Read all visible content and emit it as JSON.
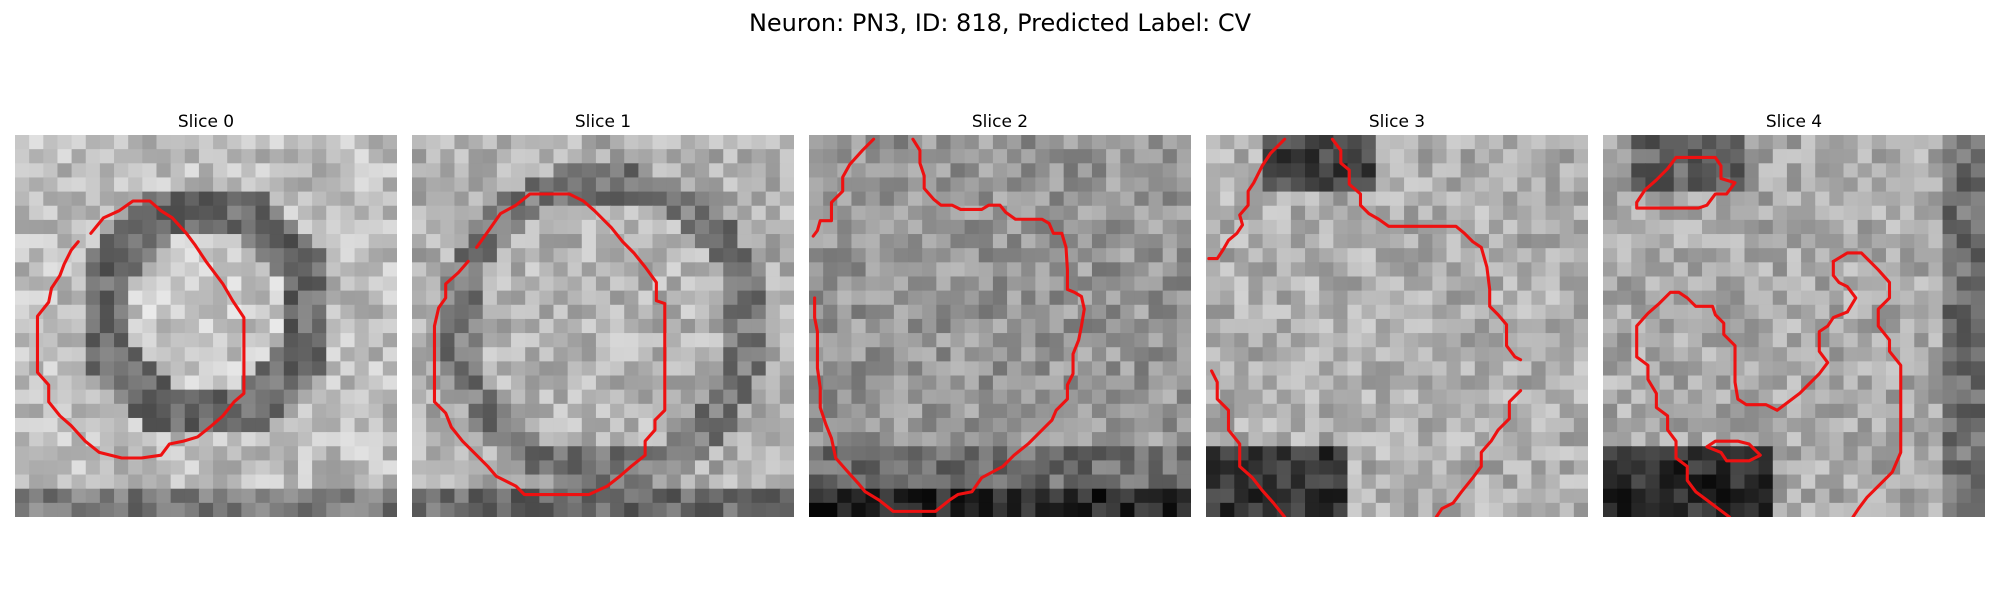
{
  "figure": {
    "title": "Neuron: PN3, ID: 818, Predicted Label: CV"
  },
  "colors": {
    "contour": "#ee1111",
    "background": "#ffffff"
  },
  "panels": [
    {
      "title": "Slice 0",
      "contours": [
        [
          [
            5.4,
            7.0
          ],
          [
            6.3,
            5.9
          ],
          [
            7.4,
            5.4
          ],
          [
            8.4,
            4.7
          ],
          [
            9.6,
            4.7
          ],
          [
            10.4,
            5.4
          ],
          [
            11.2,
            5.9
          ],
          [
            12.2,
            7.0
          ],
          [
            12.8,
            7.8
          ],
          [
            13.6,
            9.0
          ],
          [
            14.8,
            10.6
          ],
          [
            15.5,
            11.8
          ],
          [
            16.3,
            13.0
          ],
          [
            16.3,
            14.7
          ],
          [
            16.3,
            16.7
          ],
          [
            16.3,
            18.4
          ],
          [
            15.6,
            19.0
          ],
          [
            14.8,
            20.0
          ],
          [
            14.0,
            20.7
          ],
          [
            13.0,
            21.5
          ],
          [
            12.0,
            21.8
          ],
          [
            11.0,
            22.0
          ],
          [
            10.4,
            22.8
          ],
          [
            9.0,
            23.0
          ],
          [
            7.6,
            23.0
          ],
          [
            6.0,
            22.6
          ],
          [
            5.0,
            21.8
          ],
          [
            4.0,
            20.7
          ],
          [
            3.2,
            20.0
          ],
          [
            2.4,
            19.0
          ],
          [
            2.4,
            17.8
          ],
          [
            1.6,
            16.9
          ],
          [
            1.6,
            15.4
          ],
          [
            1.6,
            14.0
          ],
          [
            1.6,
            12.9
          ],
          [
            2.4,
            11.9
          ],
          [
            2.6,
            10.9
          ],
          [
            3.2,
            10.0
          ],
          [
            3.5,
            9.2
          ],
          [
            4.0,
            8.2
          ],
          [
            4.5,
            7.6
          ]
        ]
      ]
    },
    {
      "title": "Slice 1",
      "contours": [
        [
          [
            4.6,
            8.0
          ],
          [
            5.6,
            6.6
          ],
          [
            6.3,
            5.6
          ],
          [
            7.4,
            5.0
          ],
          [
            8.4,
            4.2
          ],
          [
            10.0,
            4.2
          ],
          [
            11.2,
            4.2
          ],
          [
            12.2,
            4.7
          ],
          [
            13.0,
            5.4
          ],
          [
            14.2,
            6.6
          ],
          [
            15.0,
            7.6
          ],
          [
            15.8,
            8.4
          ],
          [
            16.6,
            9.4
          ],
          [
            17.4,
            10.5
          ],
          [
            17.4,
            11.8
          ],
          [
            18.0,
            12.0
          ],
          [
            18.0,
            14.0
          ],
          [
            18.0,
            16.0
          ],
          [
            18.0,
            18.0
          ],
          [
            18.0,
            19.6
          ],
          [
            17.3,
            20.3
          ],
          [
            17.3,
            21.0
          ],
          [
            16.6,
            21.8
          ],
          [
            16.6,
            22.8
          ],
          [
            15.6,
            23.6
          ],
          [
            14.8,
            24.3
          ],
          [
            13.9,
            25.0
          ],
          [
            12.6,
            25.6
          ],
          [
            11.2,
            25.6
          ],
          [
            9.6,
            25.6
          ],
          [
            8.0,
            25.6
          ],
          [
            7.4,
            25.0
          ],
          [
            6.0,
            24.3
          ],
          [
            5.4,
            23.6
          ],
          [
            4.6,
            22.8
          ],
          [
            3.6,
            21.8
          ],
          [
            2.8,
            20.8
          ],
          [
            2.4,
            19.8
          ],
          [
            1.6,
            19.0
          ],
          [
            1.6,
            17.4
          ],
          [
            1.6,
            15.6
          ],
          [
            1.6,
            13.6
          ],
          [
            1.9,
            12.3
          ],
          [
            2.4,
            11.6
          ],
          [
            2.4,
            10.6
          ],
          [
            3.3,
            9.8
          ],
          [
            4.0,
            9.0
          ]
        ]
      ]
    },
    {
      "title": "Slice 2",
      "contours": [
        [
          [
            4.6,
            0.3
          ],
          [
            3.8,
            1.1
          ],
          [
            2.9,
            2.1
          ],
          [
            2.4,
            3.0
          ],
          [
            2.4,
            4.0
          ],
          [
            1.6,
            4.8
          ],
          [
            1.6,
            6.1
          ],
          [
            0.8,
            6.1
          ],
          [
            0.6,
            6.8
          ],
          [
            0.3,
            7.2
          ]
        ],
        [
          [
            7.4,
            0.3
          ],
          [
            7.9,
            1.1
          ],
          [
            7.9,
            2.0
          ],
          [
            8.2,
            2.9
          ],
          [
            8.2,
            3.8
          ],
          [
            8.9,
            4.6
          ],
          [
            9.4,
            5.0
          ],
          [
            10.2,
            5.0
          ],
          [
            10.8,
            5.3
          ],
          [
            11.6,
            5.3
          ],
          [
            12.3,
            5.3
          ],
          [
            12.8,
            5.0
          ],
          [
            13.6,
            5.0
          ],
          [
            14.0,
            5.5
          ],
          [
            14.7,
            6.0
          ],
          [
            15.7,
            6.0
          ],
          [
            16.6,
            6.0
          ],
          [
            17.1,
            6.3
          ],
          [
            17.4,
            7.0
          ],
          [
            18.0,
            7.0
          ],
          [
            18.3,
            8.0
          ],
          [
            18.4,
            9.6
          ],
          [
            18.4,
            11.0
          ],
          [
            18.9,
            11.2
          ],
          [
            19.4,
            11.5
          ],
          [
            19.6,
            12.4
          ],
          [
            19.4,
            13.6
          ],
          [
            19.2,
            14.6
          ],
          [
            18.8,
            15.6
          ],
          [
            18.8,
            17.0
          ],
          [
            18.4,
            17.8
          ],
          [
            18.4,
            18.8
          ],
          [
            17.6,
            19.6
          ],
          [
            17.3,
            20.3
          ],
          [
            16.6,
            21.0
          ],
          [
            15.6,
            22.0
          ],
          [
            14.6,
            22.8
          ],
          [
            13.8,
            23.6
          ],
          [
            12.3,
            24.4
          ],
          [
            11.6,
            25.4
          ],
          [
            10.6,
            25.6
          ],
          [
            10.0,
            26.0
          ],
          [
            9.0,
            26.8
          ],
          [
            8.0,
            26.8
          ],
          [
            7.0,
            26.8
          ],
          [
            6.0,
            26.8
          ],
          [
            5.0,
            26.0
          ],
          [
            4.0,
            25.4
          ],
          [
            3.5,
            24.8
          ],
          [
            2.6,
            23.8
          ],
          [
            1.9,
            23.0
          ],
          [
            1.6,
            21.6
          ],
          [
            1.2,
            20.6
          ],
          [
            0.8,
            19.4
          ],
          [
            0.8,
            18.0
          ],
          [
            0.6,
            16.6
          ],
          [
            0.6,
            14.0
          ],
          [
            0.4,
            13.0
          ],
          [
            0.4,
            11.6
          ]
        ]
      ]
    },
    {
      "title": "Slice 3",
      "contours": [
        [
          [
            5.6,
            0.3
          ],
          [
            4.6,
            1.3
          ],
          [
            4.0,
            2.2
          ],
          [
            3.4,
            3.4
          ],
          [
            3.0,
            4.0
          ],
          [
            3.0,
            5.0
          ],
          [
            2.4,
            5.7
          ],
          [
            2.6,
            6.4
          ],
          [
            2.2,
            7.0
          ],
          [
            1.6,
            7.5
          ],
          [
            1.2,
            8.2
          ],
          [
            0.8,
            8.8
          ],
          [
            0.2,
            8.8
          ]
        ],
        [
          [
            9.0,
            0.3
          ],
          [
            9.6,
            1.1
          ],
          [
            9.6,
            2.0
          ],
          [
            10.2,
            2.5
          ],
          [
            10.2,
            3.5
          ],
          [
            11.0,
            4.2
          ],
          [
            11.0,
            5.0
          ],
          [
            11.6,
            5.6
          ],
          [
            12.3,
            6.0
          ],
          [
            13.0,
            6.5
          ],
          [
            14.0,
            6.5
          ],
          [
            15.0,
            6.5
          ],
          [
            16.0,
            6.5
          ],
          [
            17.0,
            6.5
          ],
          [
            17.8,
            6.5
          ],
          [
            18.4,
            7.0
          ],
          [
            19.0,
            7.6
          ],
          [
            19.6,
            8.0
          ],
          [
            20.0,
            9.4
          ],
          [
            20.2,
            11.0
          ],
          [
            20.2,
            12.2
          ],
          [
            20.8,
            12.8
          ],
          [
            21.4,
            13.5
          ],
          [
            21.4,
            15.0
          ],
          [
            22.0,
            15.8
          ],
          [
            22.4,
            16.0
          ]
        ],
        [
          [
            22.4,
            18.2
          ],
          [
            21.6,
            19.0
          ],
          [
            21.6,
            20.2
          ],
          [
            20.8,
            21.0
          ],
          [
            20.3,
            21.8
          ],
          [
            19.6,
            22.6
          ],
          [
            19.6,
            23.6
          ],
          [
            19.0,
            24.4
          ],
          [
            18.2,
            25.4
          ],
          [
            17.6,
            26.2
          ],
          [
            16.8,
            26.6
          ],
          [
            16.4,
            27.2
          ]
        ],
        [
          [
            0.4,
            16.8
          ],
          [
            0.8,
            17.6
          ],
          [
            0.8,
            18.8
          ],
          [
            1.6,
            19.6
          ],
          [
            1.6,
            21.0
          ],
          [
            2.4,
            22.0
          ],
          [
            2.4,
            23.6
          ],
          [
            3.3,
            24.4
          ],
          [
            4.0,
            25.3
          ],
          [
            4.8,
            26.2
          ],
          [
            5.6,
            27.2
          ]
        ]
      ]
    },
    {
      "title": "Slice 4",
      "contours": [
        [
          [
            2.4,
            4.8
          ],
          [
            3.0,
            3.9
          ],
          [
            3.8,
            3.2
          ],
          [
            4.6,
            2.4
          ],
          [
            5.2,
            1.6
          ],
          [
            6.0,
            1.6
          ],
          [
            7.0,
            1.6
          ],
          [
            8.0,
            1.6
          ],
          [
            8.4,
            2.2
          ],
          [
            8.4,
            3.1
          ],
          [
            9.4,
            3.4
          ],
          [
            8.8,
            4.2
          ],
          [
            8.0,
            4.2
          ],
          [
            7.4,
            5.0
          ],
          [
            6.8,
            5.2
          ],
          [
            5.6,
            5.2
          ],
          [
            4.4,
            5.2
          ],
          [
            3.2,
            5.2
          ],
          [
            2.4,
            5.2
          ],
          [
            2.4,
            4.8
          ]
        ],
        [
          [
            16.4,
            9.0
          ],
          [
            17.4,
            8.4
          ],
          [
            18.4,
            8.4
          ],
          [
            19.0,
            9.0
          ],
          [
            19.6,
            9.6
          ],
          [
            20.4,
            10.5
          ],
          [
            20.4,
            11.6
          ],
          [
            19.6,
            12.4
          ],
          [
            19.6,
            13.6
          ],
          [
            20.4,
            14.6
          ],
          [
            20.4,
            15.4
          ],
          [
            21.2,
            16.4
          ],
          [
            21.2,
            17.4
          ],
          [
            21.2,
            19.0
          ],
          [
            21.2,
            20.8
          ],
          [
            21.2,
            22.6
          ],
          [
            20.6,
            24.0
          ],
          [
            19.6,
            25.0
          ],
          [
            18.8,
            25.8
          ],
          [
            18.2,
            26.6
          ],
          [
            17.8,
            27.2
          ]
        ],
        [
          [
            17.4,
            12.6
          ],
          [
            18.0,
            11.6
          ],
          [
            17.4,
            10.8
          ],
          [
            16.8,
            10.5
          ],
          [
            16.4,
            10.0
          ],
          [
            16.4,
            9.0
          ]
        ],
        [
          [
            17.4,
            12.6
          ],
          [
            16.4,
            13.0
          ],
          [
            16.0,
            13.6
          ],
          [
            15.4,
            14.0
          ],
          [
            15.4,
            15.4
          ],
          [
            16.0,
            16.2
          ],
          [
            15.4,
            17.0
          ],
          [
            14.6,
            17.8
          ],
          [
            14.0,
            18.4
          ],
          [
            13.2,
            19.0
          ],
          [
            12.4,
            19.6
          ],
          [
            11.6,
            19.2
          ],
          [
            10.2,
            19.2
          ],
          [
            9.6,
            18.8
          ],
          [
            9.4,
            17.6
          ],
          [
            9.4,
            16.2
          ],
          [
            9.4,
            15.0
          ],
          [
            8.6,
            14.2
          ],
          [
            8.6,
            13.4
          ],
          [
            8.0,
            12.8
          ],
          [
            7.8,
            12.2
          ],
          [
            6.6,
            12.2
          ],
          [
            6.0,
            11.6
          ],
          [
            5.4,
            11.2
          ],
          [
            4.8,
            11.2
          ],
          [
            4.0,
            12.0
          ],
          [
            3.2,
            12.7
          ],
          [
            2.4,
            13.6
          ],
          [
            2.4,
            15.8
          ],
          [
            3.2,
            16.4
          ],
          [
            3.2,
            17.4
          ],
          [
            3.8,
            18.4
          ],
          [
            3.8,
            19.4
          ],
          [
            4.6,
            20.0
          ],
          [
            4.6,
            21.0
          ],
          [
            5.2,
            21.8
          ],
          [
            5.2,
            23.0
          ],
          [
            6.0,
            23.6
          ],
          [
            6.0,
            24.6
          ],
          [
            6.6,
            25.4
          ],
          [
            7.4,
            26.0
          ],
          [
            8.2,
            26.6
          ],
          [
            9.0,
            27.2
          ]
        ],
        [
          [
            7.4,
            22.2
          ],
          [
            8.0,
            21.8
          ],
          [
            8.8,
            21.8
          ],
          [
            9.6,
            21.8
          ],
          [
            10.4,
            22.0
          ],
          [
            11.2,
            22.8
          ],
          [
            10.4,
            23.2
          ],
          [
            9.6,
            23.2
          ],
          [
            8.8,
            23.2
          ],
          [
            8.4,
            22.6
          ],
          [
            7.4,
            22.2
          ]
        ]
      ]
    }
  ]
}
